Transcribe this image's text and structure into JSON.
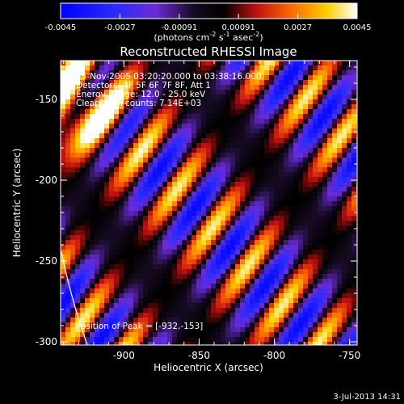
{
  "chart_data": {
    "type": "heatmap",
    "title": "Reconstructed RHESSI Image",
    "info_lines": [
      "15-Nov-2005 03:20:20.000 to 03:38:16.000",
      "Detectors: 4F 5F 6F 7F 8F, Att 1",
      "Energy Range: 12.0 - 25.0 keV",
      "Clean    Total counts: 7.14E+03"
    ],
    "peak_label": "Position of Peak = [-932,-153]",
    "xlabel": "Heliocentric X (arcsec)",
    "ylabel": "Heliocentric Y (arcsec)",
    "xlim": [
      -942,
      -745
    ],
    "ylim": [
      -302,
      -126
    ],
    "xticks": [
      -900,
      -850,
      -800,
      -750
    ],
    "yticks": [
      -150,
      -200,
      -250,
      -300
    ],
    "colorbar": {
      "range": [
        -0.0045,
        0.0045
      ],
      "ticks": [
        "-0.0045",
        "-0.0027",
        "-0.00091",
        "0.00091",
        "0.0027",
        "0.0045"
      ],
      "unit_label": "(photons cm",
      "unit_sup1": "-2",
      "unit_mid": " s",
      "unit_sup2": "-1",
      "unit_end": " asec",
      "unit_sup3": "-2",
      "unit_close": ")"
    },
    "footer_date": "3-Jul-2013 14:31"
  }
}
